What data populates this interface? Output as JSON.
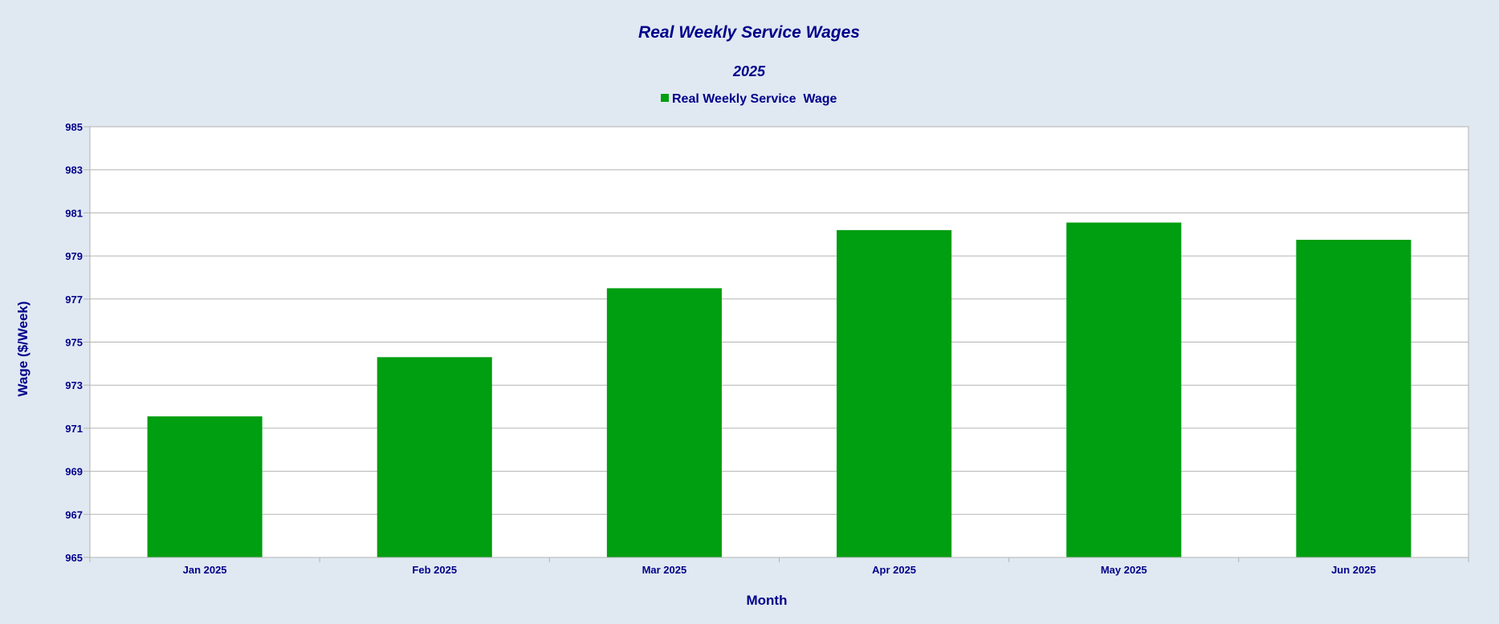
{
  "chart_data": {
    "type": "bar",
    "title": "Real Weekly Service Wages",
    "subtitle": "2025",
    "xlabel": "Month",
    "ylabel": "Wage ($/Week)",
    "categories": [
      "Jan 2025",
      "Feb 2025",
      "Mar 2025",
      "Apr 2025",
      "May 2025",
      "Jun 2025"
    ],
    "series": [
      {
        "name": "Real Weekly Service  Wage",
        "color": "#009e11",
        "values": [
          971.55,
          974.3,
          977.5,
          980.2,
          980.55,
          979.75
        ]
      }
    ],
    "ylim": [
      965,
      985
    ],
    "yticks": [
      "965",
      "967",
      "969",
      "971",
      "973",
      "975",
      "977",
      "979",
      "981",
      "983",
      "985"
    ],
    "grid": true,
    "legend_position": "top-center"
  },
  "colors": {
    "outer_background": "#e0e9f1",
    "plot_background": "#ffffff",
    "text": "#00008b",
    "gridline": "#b3b3b3",
    "bar": "#009e11"
  }
}
